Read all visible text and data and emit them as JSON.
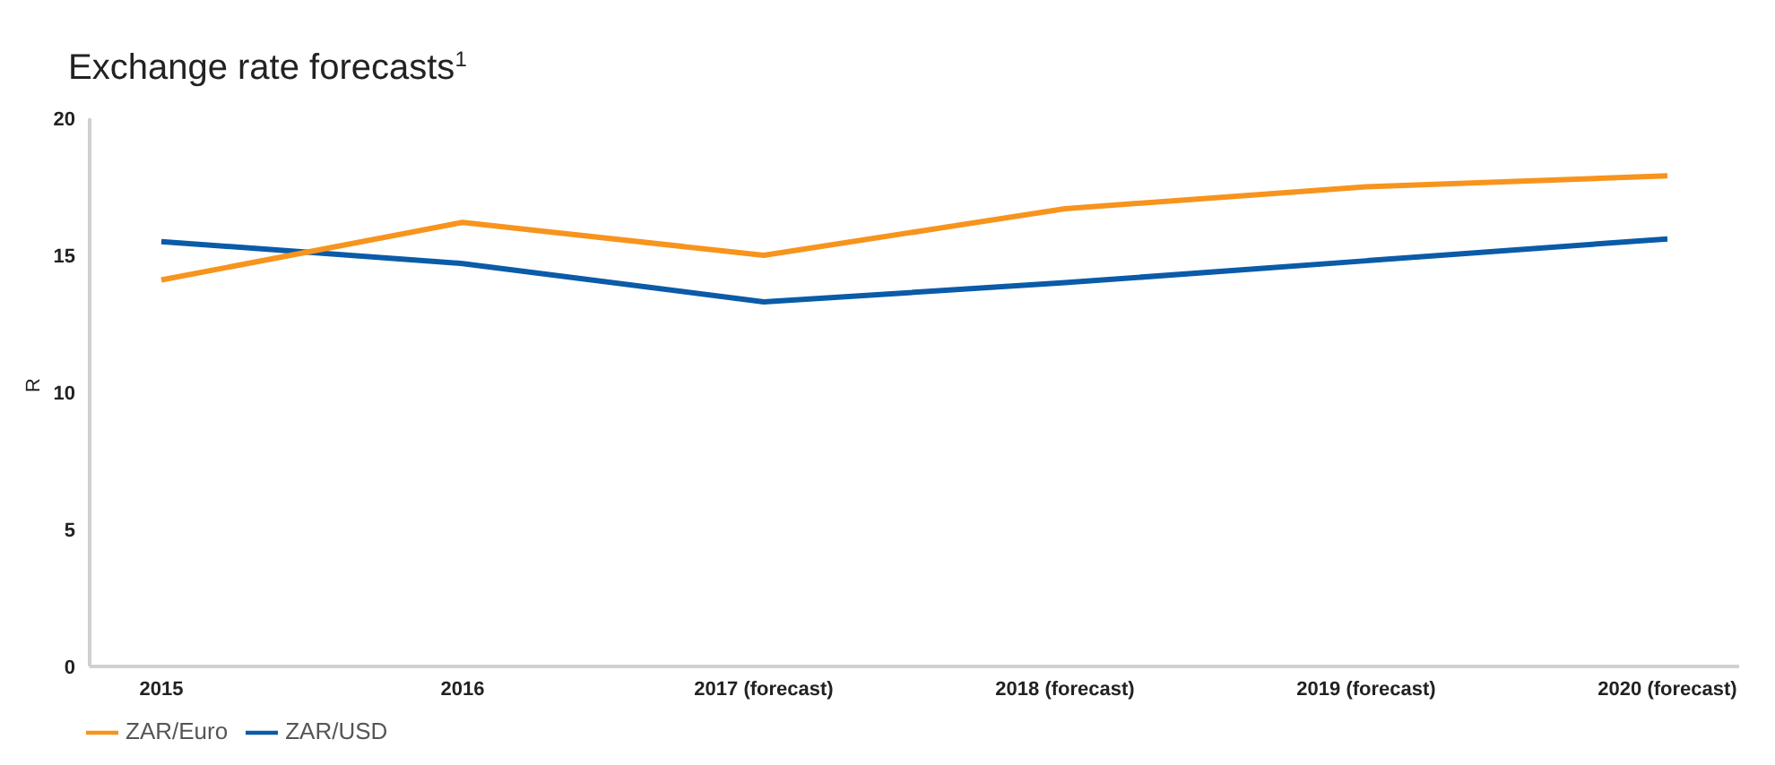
{
  "chart_data": {
    "type": "line",
    "title": "Exchange rate forecasts$^{1}$",
    "ylabel": "R",
    "categories": [
      "2015",
      "2016",
      "2017 (forecast)",
      "2018 (forecast)",
      "2019 (forecast)",
      "2020 (forecast)"
    ],
    "series": [
      {
        "name": "ZAR/USD",
        "color": "#0a5ba8",
        "values": [
          15.5,
          14.7,
          13.3,
          14.0,
          14.8,
          15.6
        ]
      },
      {
        "name": "ZAR/Euro",
        "color": "#f7941d",
        "values": [
          14.1,
          16.2,
          15.0,
          16.7,
          17.5,
          17.9
        ]
      }
    ],
    "ylim": [
      0,
      20
    ],
    "yticks": [
      0,
      5,
      10,
      15,
      20
    ],
    "grid": false,
    "legend": "bottom left",
    "marker": "none",
    "line_style": "solid"
  }
}
